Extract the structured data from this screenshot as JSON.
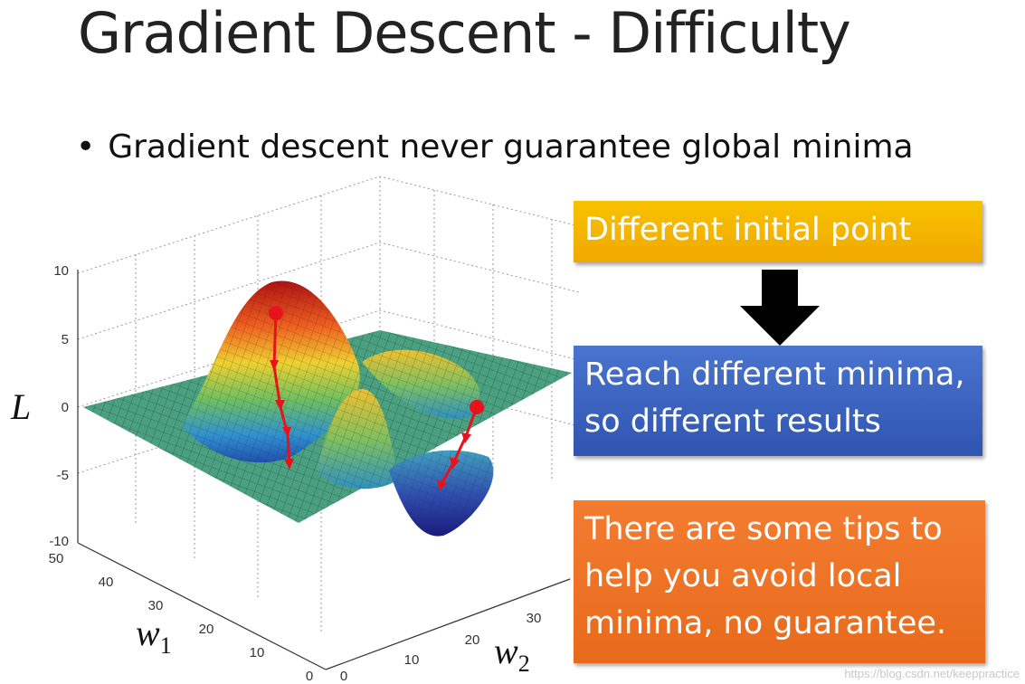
{
  "title": "Gradient Descent - Difficulty",
  "bullet": "Gradient descent never guarantee global minima",
  "boxes": {
    "initial": "Different initial point",
    "reach_line1": "Reach different minima,",
    "reach_line2": "so different results",
    "tips_line1": "There are some tips to",
    "tips_line2": "help you avoid local",
    "tips_line3": "minima, no guarantee."
  },
  "plot": {
    "z_label": "L",
    "w1_label": "w",
    "w1_sub": "1",
    "w2_label": "w",
    "w2_sub": "2",
    "z_ticks": [
      "10",
      "5",
      "0",
      "-5",
      "-10"
    ],
    "w1_ticks": [
      "50",
      "40",
      "30",
      "20",
      "10",
      "0"
    ],
    "w2_ticks": [
      "0",
      "10",
      "20",
      "30"
    ]
  },
  "colors": {
    "box_yellow": "#f5b800",
    "box_blue": "#3a62bf",
    "box_orange": "#ef7325",
    "path_red": "#e8121a"
  },
  "watermark": "https://blog.csdn.net/keeppractice"
}
